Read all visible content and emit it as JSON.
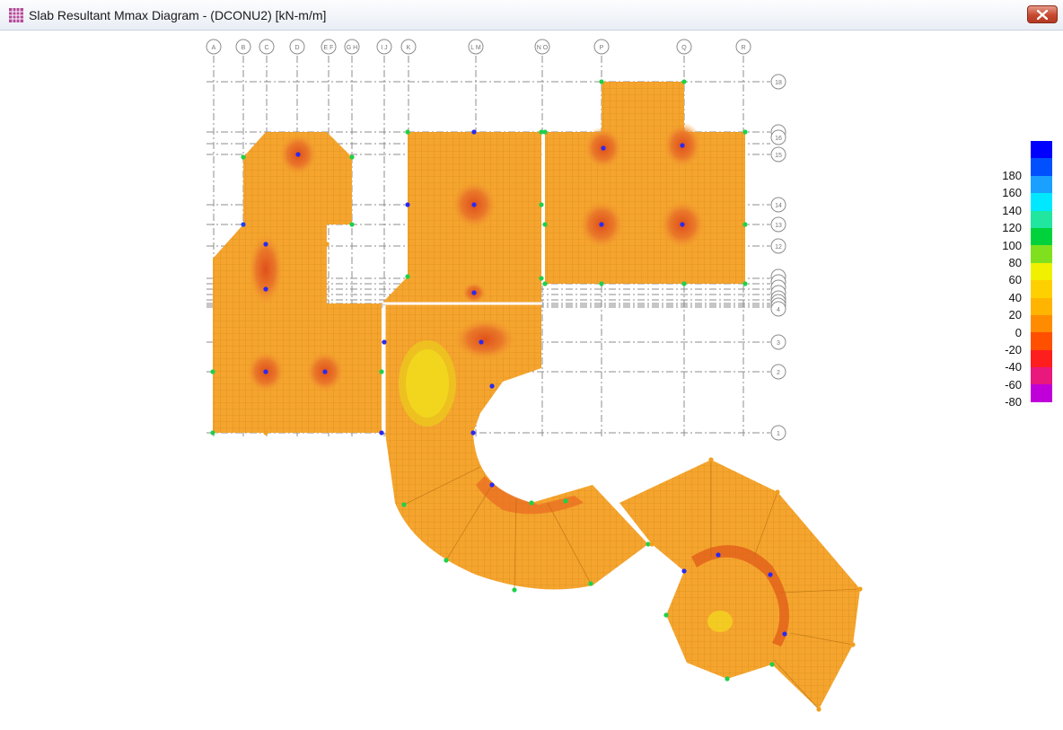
{
  "window": {
    "title": "Slab Resultant Mmax Diagram - (DCONU2)  [kN-m/m]"
  },
  "legend": {
    "labels": [
      "180",
      "160",
      "140",
      "120",
      "100",
      "80",
      "60",
      "40",
      "20",
      "0",
      "-20",
      "-40",
      "-60",
      "-80"
    ],
    "colors": [
      "#0000ff",
      "#0050ff",
      "#1aa0ff",
      "#00e8ff",
      "#20e6a0",
      "#00d23c",
      "#80e01e",
      "#f0f000",
      "#ffd000",
      "#ffb400",
      "#ff8c00",
      "#ff5000",
      "#ff1e1e",
      "#e8187c",
      "#c000d8"
    ]
  },
  "grid": {
    "columns": [
      "A",
      "B",
      "C",
      "D",
      "E F",
      "G H",
      "I J",
      "K",
      "L M",
      "N O",
      "P",
      "Q",
      "R"
    ],
    "rows": [
      "18",
      "17",
      "16",
      "15",
      "14",
      "13",
      "12",
      "11",
      "10",
      "9",
      "8",
      "7",
      "6",
      "5",
      "4",
      "3",
      "2",
      "1"
    ]
  },
  "colors": {
    "slab": "#f5a52e",
    "slab_mesh": "#c97d12",
    "hot": "#e97628",
    "cool": "#f3dc1e",
    "grid_line": "#8c8c8c"
  }
}
